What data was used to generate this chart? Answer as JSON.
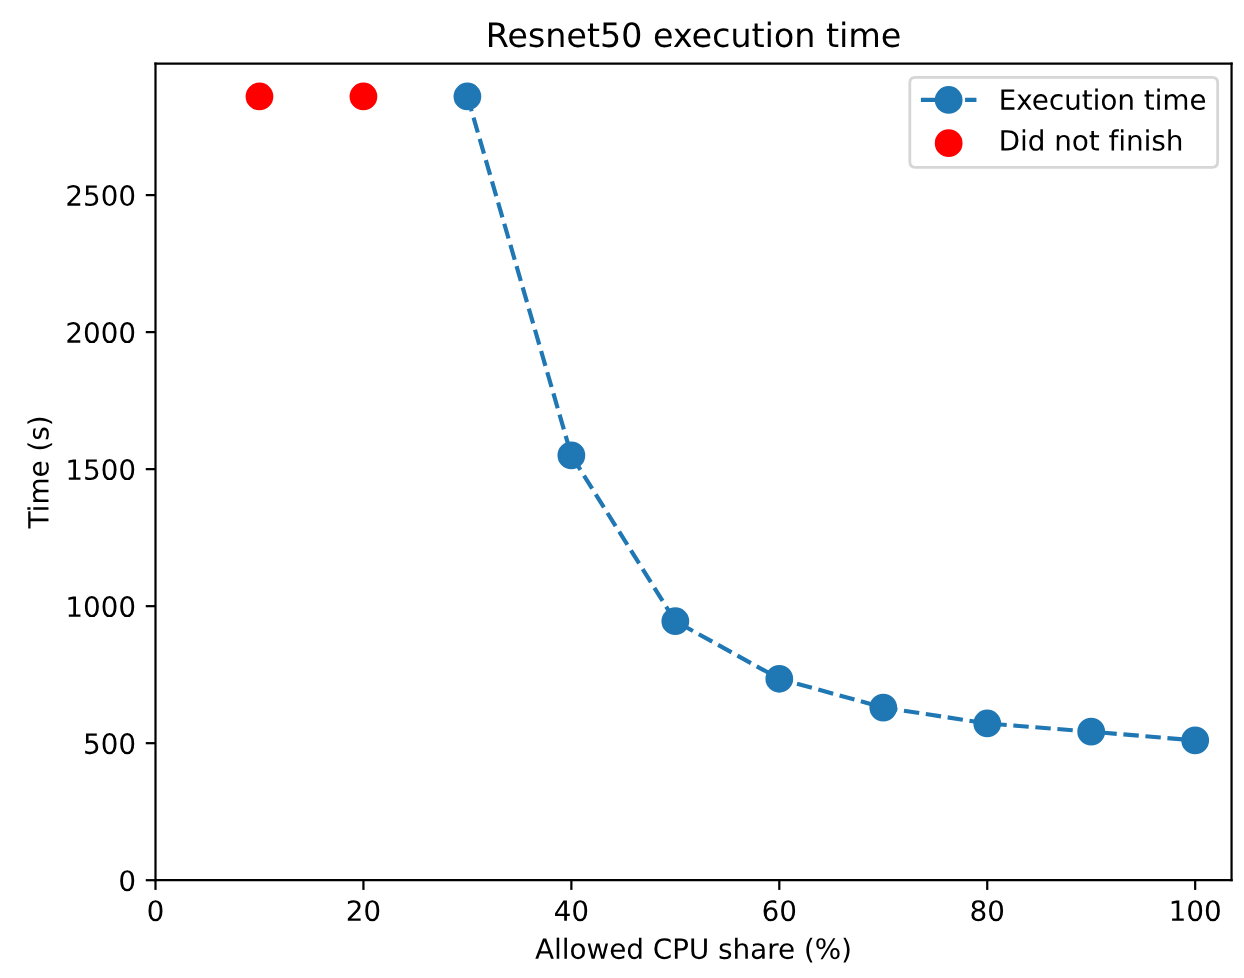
{
  "chart_data": {
    "type": "line",
    "title": "Resnet50 execution time",
    "xlabel": "Allowed CPU share (%)",
    "ylabel": "Time (s)",
    "series": [
      {
        "name": "Execution time",
        "color": "#1f77b4",
        "marker": "circle",
        "line_style": "dashed",
        "x": [
          30,
          40,
          50,
          60,
          70,
          80,
          90,
          100
        ],
        "values": [
          2860,
          1550,
          945,
          735,
          630,
          572,
          542,
          510
        ]
      },
      {
        "name": "Did not finish",
        "type": "scatter",
        "color": "#ff0000",
        "marker": "circle",
        "x": [
          10,
          20
        ],
        "values": [
          2860,
          2860
        ]
      }
    ],
    "xlim": [
      0,
      103.5
    ],
    "xticks": [
      0,
      20,
      40,
      60,
      80,
      100
    ],
    "ylim": [
      0,
      2980
    ],
    "yticks": [
      0,
      500,
      1000,
      1500,
      2000,
      2500
    ],
    "grid": false,
    "legend": "top right"
  }
}
